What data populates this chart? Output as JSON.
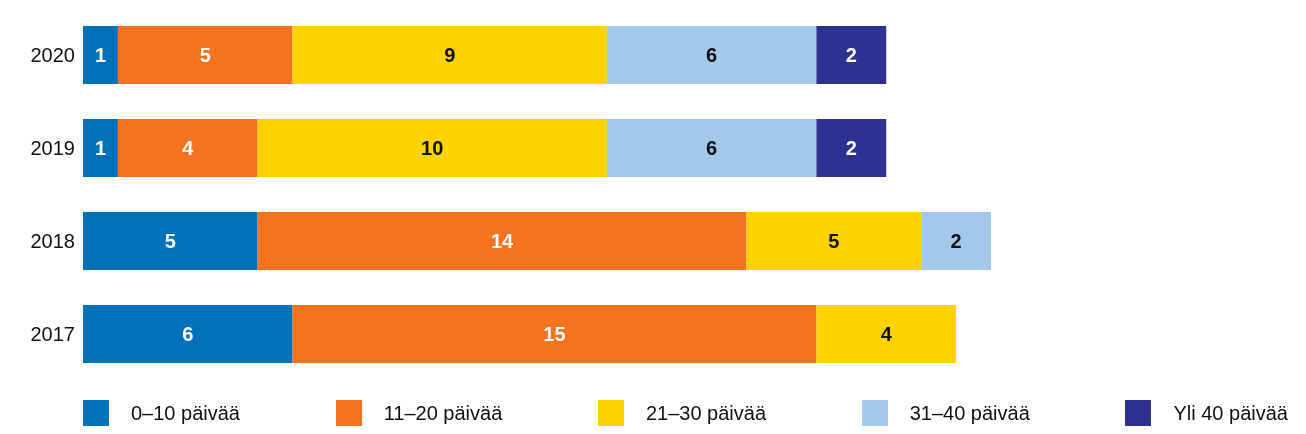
{
  "chart_data": {
    "type": "bar",
    "orientation": "horizontal",
    "stacked": true,
    "data_labels": true,
    "categories": [
      "2020",
      "2019",
      "2018",
      "2017"
    ],
    "legend": "bottom",
    "series": [
      {
        "name": "0–10 päivää",
        "color": "#0070b8",
        "values": [
          1,
          1,
          5,
          6
        ]
      },
      {
        "name": "11–20 päivää",
        "color": "#f47320",
        "values": [
          5,
          4,
          14,
          15
        ]
      },
      {
        "name": "21–30 päivää",
        "color": "#ffd200",
        "values": [
          9,
          10,
          5,
          4
        ]
      },
      {
        "name": "31–40 päivää",
        "color": "#a3c8ea",
        "values": [
          6,
          6,
          2,
          null
        ]
      },
      {
        "name": "Yli 40 päivää",
        "color": "#2e3192",
        "values": [
          2,
          2,
          null,
          null
        ]
      }
    ]
  }
}
